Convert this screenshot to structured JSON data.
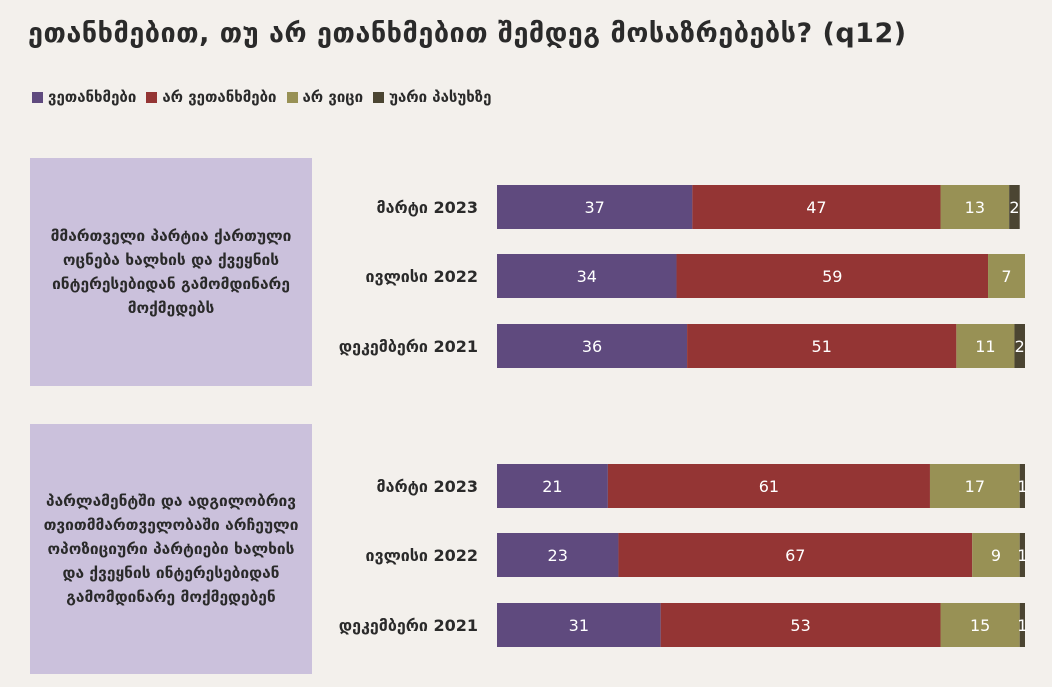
{
  "title": "ეთანხმებით, თუ არ ეთანხმებით შემდეგ მოსაზრებებს? (q12)",
  "legend": [
    {
      "label": "ვეთანხმები",
      "color": "#5f4a7e"
    },
    {
      "label": "არ ვეთანხმები",
      "color": "#943534"
    },
    {
      "label": "არ ვიცი",
      "color": "#989155"
    },
    {
      "label": "უარი პასუხზე",
      "color": "#4b4532"
    }
  ],
  "groups": [
    {
      "label": "მმართველი პარტია ქართული ოცნება ხალხის და ქვეყნის ინტერესებიდან გამომდინარე მოქმედებს"
    },
    {
      "label": "პარლამენტში და ადგილობრივ თვითმმართველობაში არჩეული ოპოზიციური პარტიები ხალხის და ქვეყნის ინტერესებიდან გამომდინარე მოქმედებენ"
    }
  ],
  "chart_data": {
    "type": "bar",
    "orientation": "horizontal",
    "stacked": true,
    "series": [
      {
        "name": "ვეთანხმები",
        "color": "#5f4a7e"
      },
      {
        "name": "არ ვეთანხმები",
        "color": "#943534"
      },
      {
        "name": "არ ვიცი",
        "color": "#989155"
      },
      {
        "name": "უარი პასუხზე",
        "color": "#4b4532"
      }
    ],
    "groups": [
      {
        "rows": [
          {
            "category": "მარტი 2023",
            "values": [
              37,
              47,
              13,
              2
            ]
          },
          {
            "category": "ივლისი 2022",
            "values": [
              34,
              59,
              7,
              0
            ]
          },
          {
            "category": "დეკემბერი 2021",
            "values": [
              36,
              51,
              11,
              2
            ]
          }
        ]
      },
      {
        "rows": [
          {
            "category": "მარტი 2023",
            "values": [
              21,
              61,
              17,
              1
            ]
          },
          {
            "category": "ივლისი 2022",
            "values": [
              23,
              67,
              9,
              1
            ]
          },
          {
            "category": "დეკემბერი 2021",
            "values": [
              31,
              53,
              15,
              1
            ]
          }
        ]
      }
    ],
    "xlim": [
      0,
      100
    ],
    "legend_position": "top-left",
    "grid": false
  }
}
